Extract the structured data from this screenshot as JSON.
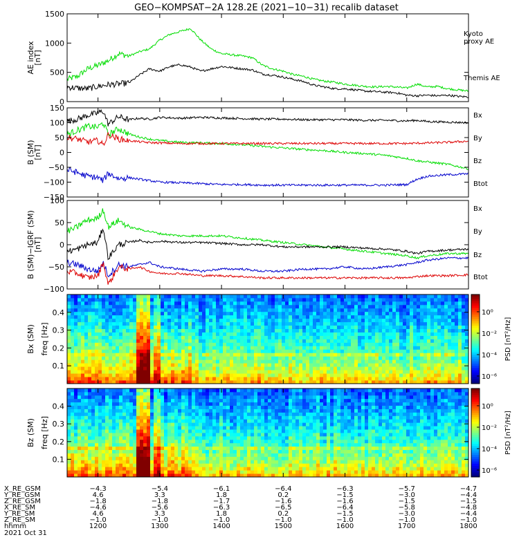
{
  "title": "GEO−KOMPSAT−2A 128.2E (2021−10−31) recalib dataset",
  "chart_data": [
    {
      "id": "ae",
      "type": "line",
      "ylabel": "AE index",
      "yunit": "[nT]",
      "ylim": [
        0,
        1500
      ],
      "yticks": [
        "0",
        "500",
        "1000",
        "1500"
      ],
      "x": [
        1130,
        1140,
        1150,
        1200,
        1210,
        1220,
        1230,
        1240,
        1250,
        1300,
        1310,
        1320,
        1330,
        1340,
        1350,
        1400,
        1410,
        1420,
        1430,
        1440,
        1450,
        1500,
        1510,
        1520,
        1530,
        1540,
        1550,
        1600,
        1610,
        1620,
        1630,
        1640,
        1650,
        1700,
        1710,
        1720,
        1730,
        1740,
        1750,
        1800
      ],
      "series": [
        {
          "name": "Kyoto\nproxy AE",
          "color": "#00dd00",
          "values": [
            380,
            430,
            560,
            620,
            700,
            820,
            780,
            850,
            900,
            1050,
            1150,
            1200,
            1250,
            1050,
            900,
            820,
            800,
            780,
            750,
            620,
            560,
            520,
            460,
            430,
            380,
            350,
            330,
            300,
            280,
            260,
            250,
            260,
            250,
            230,
            300,
            250,
            260,
            220,
            200,
            180
          ]
        },
        {
          "name": "Themis AE",
          "color": "#000000",
          "values": [
            250,
            230,
            220,
            260,
            290,
            300,
            320,
            450,
            560,
            520,
            600,
            630,
            590,
            520,
            560,
            600,
            580,
            560,
            540,
            470,
            450,
            420,
            380,
            340,
            280,
            250,
            220,
            220,
            200,
            180,
            170,
            160,
            150,
            110,
            100,
            110,
            100,
            110,
            90,
            80
          ]
        }
      ]
    },
    {
      "id": "b",
      "type": "line",
      "ylabel": "B (SM)",
      "yunit": "[nT]",
      "ylim": [
        -150,
        150
      ],
      "yticks": [
        "−150",
        "−100",
        "−50",
        "0",
        "50",
        "100",
        "150"
      ],
      "x": [
        1130,
        1140,
        1145,
        1150,
        1200,
        1205,
        1210,
        1220,
        1230,
        1240,
        1250,
        1300,
        1320,
        1340,
        1400,
        1420,
        1440,
        1500,
        1520,
        1540,
        1600,
        1620,
        1640,
        1700,
        1710,
        1720,
        1740,
        1800
      ],
      "series": [
        {
          "name": "Bx",
          "color": "#000000",
          "values": [
            105,
            112,
            118,
            125,
            132,
            140,
            95,
            120,
            110,
            115,
            112,
            118,
            115,
            118,
            116,
            114,
            112,
            112,
            110,
            110,
            110,
            108,
            108,
            106,
            108,
            104,
            102,
            100
          ]
        },
        {
          "name": "By",
          "color": "#00dd00",
          "values": [
            60,
            75,
            80,
            88,
            85,
            100,
            60,
            80,
            62,
            52,
            45,
            40,
            34,
            32,
            30,
            26,
            20,
            15,
            10,
            6,
            0,
            -4,
            -10,
            -20,
            -28,
            -32,
            -40,
            -55
          ]
        },
        {
          "name": "Bz",
          "color": "#dd0000",
          "values": [
            50,
            45,
            40,
            35,
            40,
            25,
            60,
            45,
            40,
            36,
            33,
            32,
            30,
            30,
            30,
            30,
            30,
            30,
            30,
            30,
            30,
            30,
            30,
            30,
            31,
            32,
            34,
            38
          ]
        },
        {
          "name": "Btot",
          "color": "#0000cc",
          "values": [
            -58,
            -68,
            -75,
            -80,
            -85,
            -95,
            -70,
            -88,
            -85,
            -90,
            -95,
            -100,
            -102,
            -105,
            -108,
            -108,
            -110,
            -110,
            -110,
            -110,
            -110,
            -110,
            -110,
            -108,
            -90,
            -80,
            -75,
            -72
          ]
        }
      ]
    },
    {
      "id": "bd",
      "type": "line",
      "ylabel": "B (SM)−IGRF (SM)",
      "yunit": "[nT]",
      "ylim": [
        -100,
        100
      ],
      "yticks": [
        "−100",
        "−50",
        "0",
        "50",
        "100"
      ],
      "x": [
        1130,
        1140,
        1145,
        1150,
        1200,
        1205,
        1210,
        1220,
        1230,
        1240,
        1250,
        1300,
        1320,
        1340,
        1400,
        1420,
        1440,
        1500,
        1520,
        1540,
        1600,
        1620,
        1640,
        1700,
        1710,
        1720,
        1740,
        1800
      ],
      "series": [
        {
          "name": "Bx",
          "color": "#0000cc",
          "values": [
            -40,
            -45,
            -50,
            -55,
            -60,
            -40,
            -70,
            -45,
            -50,
            -45,
            -40,
            -50,
            -55,
            -60,
            -55,
            -55,
            -60,
            -60,
            -55,
            -55,
            -50,
            -55,
            -50,
            -45,
            -40,
            -35,
            -30,
            -30
          ]
        },
        {
          "name": "By",
          "color": "#00dd00",
          "values": [
            30,
            40,
            50,
            55,
            60,
            80,
            40,
            55,
            40,
            35,
            30,
            25,
            20,
            20,
            20,
            15,
            10,
            5,
            0,
            -5,
            -10,
            -15,
            -20,
            -25,
            -30,
            -25,
            -20,
            -20
          ]
        },
        {
          "name": "Bz",
          "color": "#dd0000",
          "values": [
            -60,
            -65,
            -70,
            -75,
            -70,
            -40,
            -90,
            -50,
            -55,
            -50,
            -60,
            -65,
            -65,
            -70,
            -70,
            -72,
            -75,
            -75,
            -75,
            -75,
            -75,
            -75,
            -75,
            -75,
            -72,
            -70,
            -70,
            -68
          ]
        },
        {
          "name": "Btot",
          "color": "#000000",
          "values": [
            -15,
            -10,
            -5,
            0,
            5,
            40,
            -30,
            0,
            5,
            10,
            5,
            8,
            5,
            5,
            3,
            0,
            0,
            -5,
            -5,
            -5,
            -5,
            -8,
            -10,
            -15,
            -20,
            -15,
            -12,
            -10
          ]
        }
      ]
    },
    {
      "id": "spec_bx",
      "type": "heatmap",
      "ylabel": "Bx (SM)",
      "ylabel2": "freq  [Hz]",
      "yticks": [
        "0.1",
        "0.2",
        "0.3",
        "0.4"
      ],
      "ylim": [
        0,
        0.5
      ],
      "colorbar_label": "PSD [nT²/Hz]",
      "colorbar_ticks": [
        "10⁰",
        "10⁻²",
        "10⁻⁴",
        "10⁻⁶"
      ]
    },
    {
      "id": "spec_bz",
      "type": "heatmap",
      "ylabel": "Bz (SM)",
      "ylabel2": "freq  [Hz]",
      "yticks": [
        "0.1",
        "0.2",
        "0.3",
        "0.4"
      ],
      "ylim": [
        0,
        0.5
      ],
      "colorbar_label": "PSD [nT²/Hz]",
      "colorbar_ticks": [
        "10⁰",
        "10⁻²",
        "10⁻⁴",
        "10⁻⁶"
      ]
    }
  ],
  "ephemeris": {
    "row_labels": [
      "X_RE_GSM",
      "Y_RE_GSM",
      "Z_RE_GSM",
      "X_RE_SM",
      "Y_RE_SM",
      "Z_RE_SM",
      "hhmm",
      "2021 Oct 31"
    ],
    "columns": [
      [
        "−4.3",
        "4.6",
        "−1.8",
        "−4.6",
        "4.6",
        "−1.0",
        "1200"
      ],
      [
        "−5.4",
        "3.3",
        "−1.8",
        "−5.6",
        "3.3",
        "−1.0",
        "1300"
      ],
      [
        "−6.1",
        "1.8",
        "−1.7",
        "−6.3",
        "1.8",
        "−1.0",
        "1400"
      ],
      [
        "−6.4",
        "0.2",
        "−1.6",
        "−6.5",
        "0.2",
        "−1.0",
        "1500"
      ],
      [
        "−6.3",
        "−1.5",
        "−1.6",
        "−6.4",
        "−1.5",
        "−1.0",
        "1600"
      ],
      [
        "−5.7",
        "−3.0",
        "−1.5",
        "−5.8",
        "−3.0",
        "−1.0",
        "1700"
      ],
      [
        "−4.7",
        "−4.4",
        "−1.5",
        "−4.8",
        "−4.4",
        "−1.0",
        "1800"
      ]
    ]
  }
}
